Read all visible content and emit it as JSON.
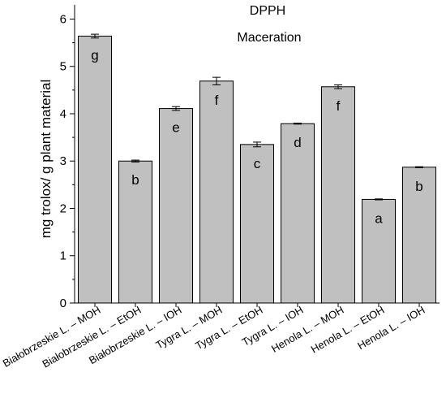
{
  "chart_data": {
    "type": "bar",
    "title": "DPPH",
    "subtitle": "Maceration",
    "xlabel": "",
    "ylabel": "mg trolox/ g plant material",
    "ylim": [
      0,
      6.3
    ],
    "yticks": [
      0,
      1,
      2,
      3,
      4,
      5,
      6
    ],
    "grid": false,
    "categories": [
      "Białobrzeskie L. – MOH",
      "Białobrzeskie L. – EtOH",
      "Białobrzeskie L. – IOH",
      "Tygra L. – MOH",
      "Tygra L. – EtOH",
      "Tygra L. – IOH",
      "Henola L. – MOH",
      "Henola L. – EtOH",
      "Henola L. – IOH"
    ],
    "values": [
      5.64,
      3.0,
      4.11,
      4.69,
      3.35,
      3.79,
      4.57,
      2.19,
      2.87
    ],
    "errors": [
      0.04,
      0.02,
      0.04,
      0.08,
      0.05,
      0.01,
      0.04,
      0.01,
      0.01
    ],
    "labels": [
      "g",
      "b",
      "e",
      "f",
      "c",
      "d",
      "f",
      "a",
      "b"
    ],
    "bar_color": "#c0c0c0",
    "edge_color": "#000000"
  }
}
